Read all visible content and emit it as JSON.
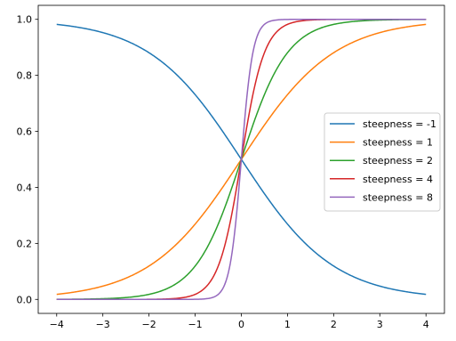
{
  "chart_data": {
    "type": "line",
    "title": "",
    "xlabel": "",
    "ylabel": "",
    "xlim": [
      -4.4,
      4.4
    ],
    "ylim": [
      -0.05,
      1.05
    ],
    "xticks": [
      -4,
      -3,
      -2,
      -1,
      0,
      1,
      2,
      3,
      4
    ],
    "xtick_labels": [
      "−4",
      "−3",
      "−2",
      "−1",
      "0",
      "1",
      "2",
      "3",
      "4"
    ],
    "yticks": [
      0.0,
      0.2,
      0.4,
      0.6,
      0.8,
      1.0
    ],
    "ytick_labels": [
      "0.0",
      "0.2",
      "0.4",
      "0.6",
      "0.8",
      "1.0"
    ],
    "grid": false,
    "legend_position": "center-right",
    "function": "sigmoid(steepness * x)",
    "x_range": [
      -4,
      4
    ],
    "series": [
      {
        "name": "steepness = -1",
        "steepness": -1,
        "color": "#1f77b4"
      },
      {
        "name": "steepness = 1",
        "steepness": 1,
        "color": "#ff7f0e"
      },
      {
        "name": "steepness = 2",
        "steepness": 2,
        "color": "#2ca02c"
      },
      {
        "name": "steepness = 4",
        "steepness": 4,
        "color": "#d62728"
      },
      {
        "name": "steepness = 8",
        "steepness": 8,
        "color": "#9467bd"
      }
    ]
  }
}
